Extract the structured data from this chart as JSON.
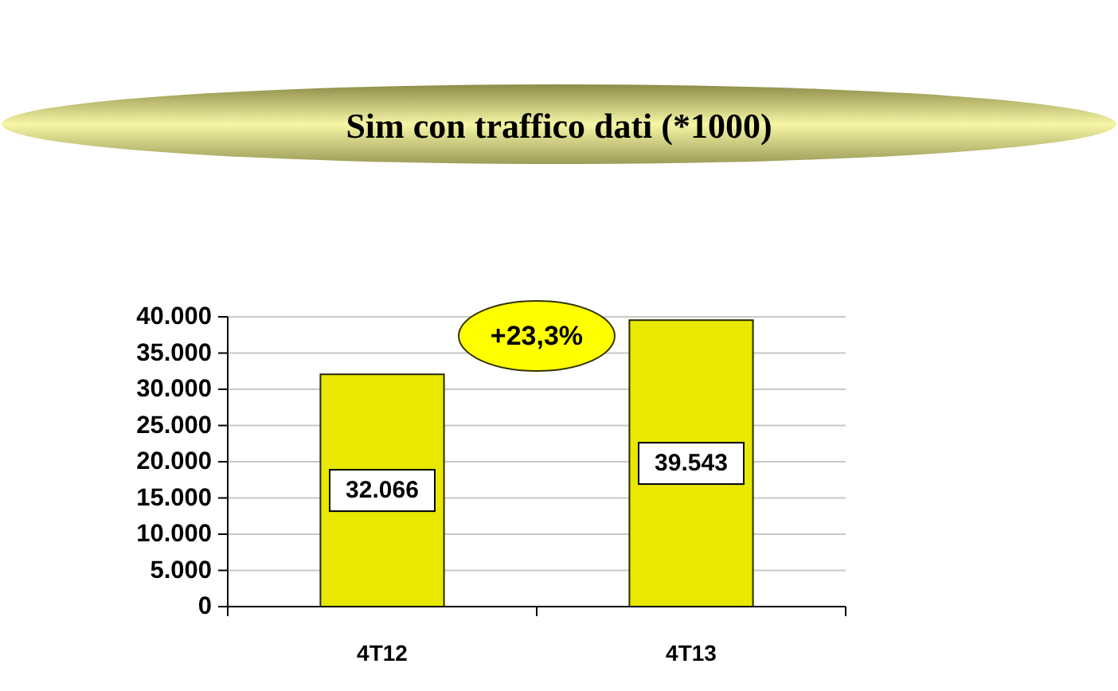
{
  "chart_data": {
    "type": "bar",
    "title": "Sim con traffico dati (*1000)",
    "categories": [
      "4T12",
      "4T13"
    ],
    "values": [
      32066,
      39543
    ],
    "value_labels": [
      "32.066",
      "39.543"
    ],
    "color": "#e8e800",
    "ylim": [
      0,
      40000
    ],
    "yticks": [
      0,
      {
        "value": 5000,
        "label": "5.000"
      },
      {
        "value": 10000,
        "label": "10.000"
      },
      {
        "value": 15000,
        "label": "15.000"
      },
      {
        "value": 20000,
        "label": "20.000"
      },
      {
        "value": 25000,
        "label": "25.000"
      },
      {
        "value": 30000,
        "label": "30.000"
      },
      {
        "value": 35000,
        "label": "35.000"
      },
      {
        "value": 40000,
        "label": "40.000"
      }
    ],
    "grid": "y",
    "annotations": [
      "+23,3%"
    ]
  }
}
